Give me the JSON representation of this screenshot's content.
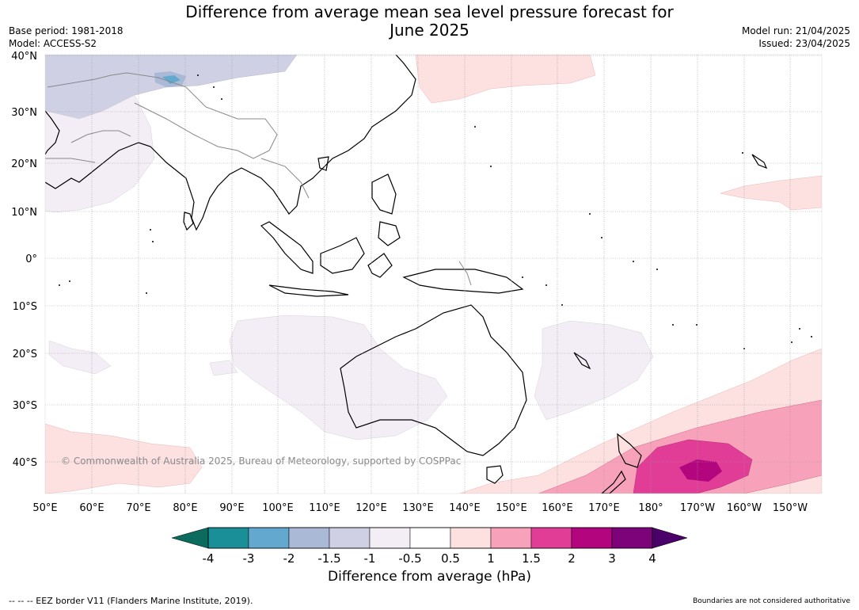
{
  "title_line1": "Difference from average mean sea level pressure forecast for",
  "title_line2": "June 2025",
  "meta": {
    "base_period": "Base period: 1981-2018",
    "model": "Model: ACCESS-S2",
    "model_run": "Model run: 21/04/2025",
    "issued": "Issued: 23/04/2025"
  },
  "map": {
    "lat_labels": [
      "40°N",
      "30°N",
      "20°N",
      "10°N",
      "0°",
      "10°S",
      "20°S",
      "30°S",
      "40°S"
    ],
    "lon_labels": [
      "50°E",
      "60°E",
      "70°E",
      "80°E",
      "90°E",
      "100°E",
      "110°E",
      "120°E",
      "130°E",
      "140°E",
      "150°E",
      "160°E",
      "170°E",
      "180°",
      "170°W",
      "160°W",
      "150°W"
    ],
    "copyright": "© Commonwealth of Australia 2025, Bureau of Meteorology, supported by COSPPac"
  },
  "colorbar": {
    "title": "Difference from average (hPa)",
    "ticks": [
      "-4",
      "-3",
      "-2",
      "-1.5",
      "-1",
      "-0.5",
      "0.5",
      "1",
      "1.5",
      "2",
      "3",
      "4"
    ],
    "colors": [
      "#1a8f97",
      "#63a8cf",
      "#a9b9d6",
      "#cfd0e4",
      "#f3eef5",
      "#ffffff",
      "#fde0e0",
      "#f7a2ba",
      "#e13d96",
      "#b3057e",
      "#7c0379"
    ],
    "extend_low_color": "#0a6b5e",
    "extend_high_color": "#4a0068"
  },
  "footer": {
    "left": "--  --  -- EEZ border V11 (Flanders Marine Institute, 2019).",
    "right": "Boundaries are not considered authoritative"
  }
}
